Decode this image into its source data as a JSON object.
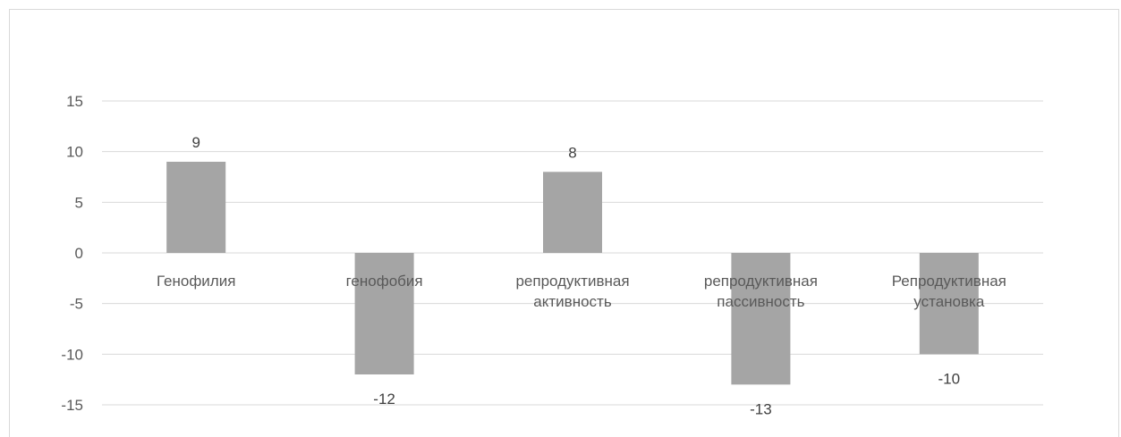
{
  "chart_data": {
    "type": "bar",
    "categories": [
      [
        "Генофилия"
      ],
      [
        "генофобия"
      ],
      [
        "репродуктивная",
        "активность"
      ],
      [
        "репродуктивная",
        "пассивность"
      ],
      [
        "Репродуктивная",
        "установка"
      ]
    ],
    "values": [
      9,
      -12,
      8,
      -13,
      -10
    ],
    "ylim": [
      -15,
      15
    ],
    "yticks": [
      15,
      10,
      5,
      0,
      -5,
      -10,
      -15
    ],
    "grid": true,
    "bar_color": "#a5a5a5",
    "grid_color": "#d9d9d9"
  }
}
